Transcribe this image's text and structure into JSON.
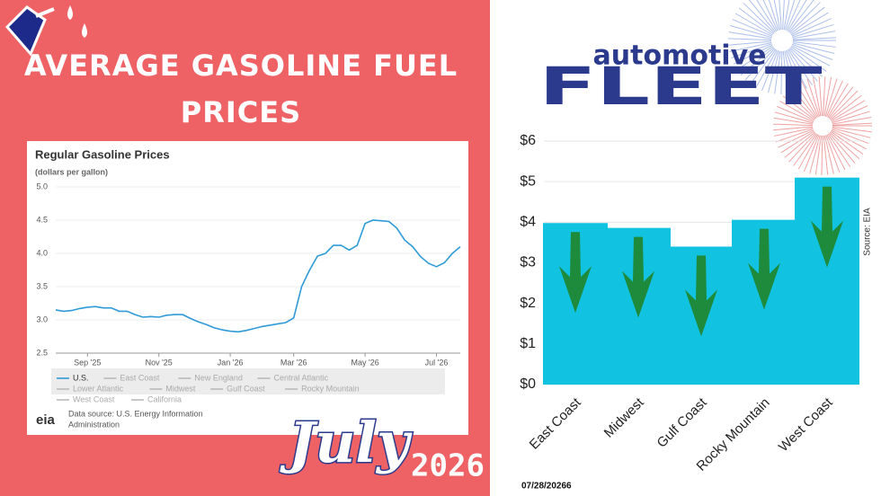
{
  "header": {
    "title_line1": "AVERAGE GASOLINE FUEL",
    "title_line2": "PRICES",
    "month": "July",
    "year": "2026",
    "logo_top": "automotive",
    "logo_bottom": "FLEET",
    "date": "07/28/20266",
    "source": "Source: EIA"
  },
  "chart_data": [
    {
      "type": "line",
      "title": "Regular Gasoline Prices",
      "subtitle": "(dollars per gallon)",
      "categories": [
        null,
        null,
        null,
        null,
        "Sep '25",
        null,
        null,
        null,
        null,
        null,
        null,
        null,
        null,
        "Nov '25",
        null,
        null,
        null,
        null,
        null,
        null,
        null,
        null,
        "Jan '26",
        null,
        null,
        null,
        null,
        null,
        null,
        null,
        "Mar '26",
        null,
        null,
        null,
        null,
        null,
        null,
        null,
        null,
        "May '26",
        null,
        null,
        null,
        null,
        null,
        null,
        null,
        null,
        "Jul '26",
        null,
        null,
        null
      ],
      "series": [
        {
          "name": "U.S.",
          "color": "#2e9bd6",
          "values": [
            3.15,
            3.13,
            3.14,
            3.17,
            3.19,
            3.2,
            3.18,
            3.18,
            3.13,
            3.13,
            3.08,
            3.04,
            3.05,
            3.04,
            3.07,
            3.08,
            3.08,
            3.02,
            2.97,
            2.93,
            2.88,
            2.85,
            2.83,
            2.82,
            2.84,
            2.87,
            2.9,
            2.92,
            2.94,
            2.96,
            3.03,
            3.5,
            3.75,
            3.96,
            4.0,
            4.12,
            4.12,
            4.05,
            4.12,
            4.45,
            4.5,
            4.49,
            4.48,
            4.38,
            4.2,
            4.1,
            3.95,
            3.85,
            3.8,
            3.86,
            4.0,
            4.1
          ]
        }
      ],
      "inactive_legend": [
        "East Coast",
        "New England",
        "Central Atlantic",
        "Lower Atlantic",
        "Midwest",
        "Gulf Coast",
        "Rocky Mountain",
        "West Coast",
        "California"
      ],
      "ylim": [
        2.5,
        5.0
      ],
      "yticks": [
        2.5,
        {
          "value": 3,
          "label": "3.0"
        },
        3.5,
        {
          "value": 4,
          "label": "4.0"
        },
        4.5,
        {
          "value": 5,
          "label": "5.0"
        }
      ],
      "footer_logo": "eia",
      "footer_line1": "Data source: U.S. Energy Information",
      "footer_line2": "Administration"
    },
    {
      "type": "bar",
      "categories": [
        "East Coast",
        "Midwest",
        "Gulf Coast",
        "Rocky Mountain",
        "West Coast"
      ],
      "values": [
        3.98,
        3.86,
        3.4,
        4.06,
        5.1
      ],
      "color": "#12c3e1",
      "ylim": [
        0,
        6
      ],
      "yticks": [
        {
          "value": 0,
          "label": "$0"
        },
        {
          "value": 1,
          "label": "$1"
        },
        {
          "value": 2,
          "label": "$2"
        },
        {
          "value": 3,
          "label": "$3"
        },
        {
          "value": 4,
          "label": "$4"
        },
        {
          "value": 5,
          "label": "$5"
        },
        {
          "value": 6,
          "label": "$6"
        }
      ],
      "grid": true
    }
  ]
}
